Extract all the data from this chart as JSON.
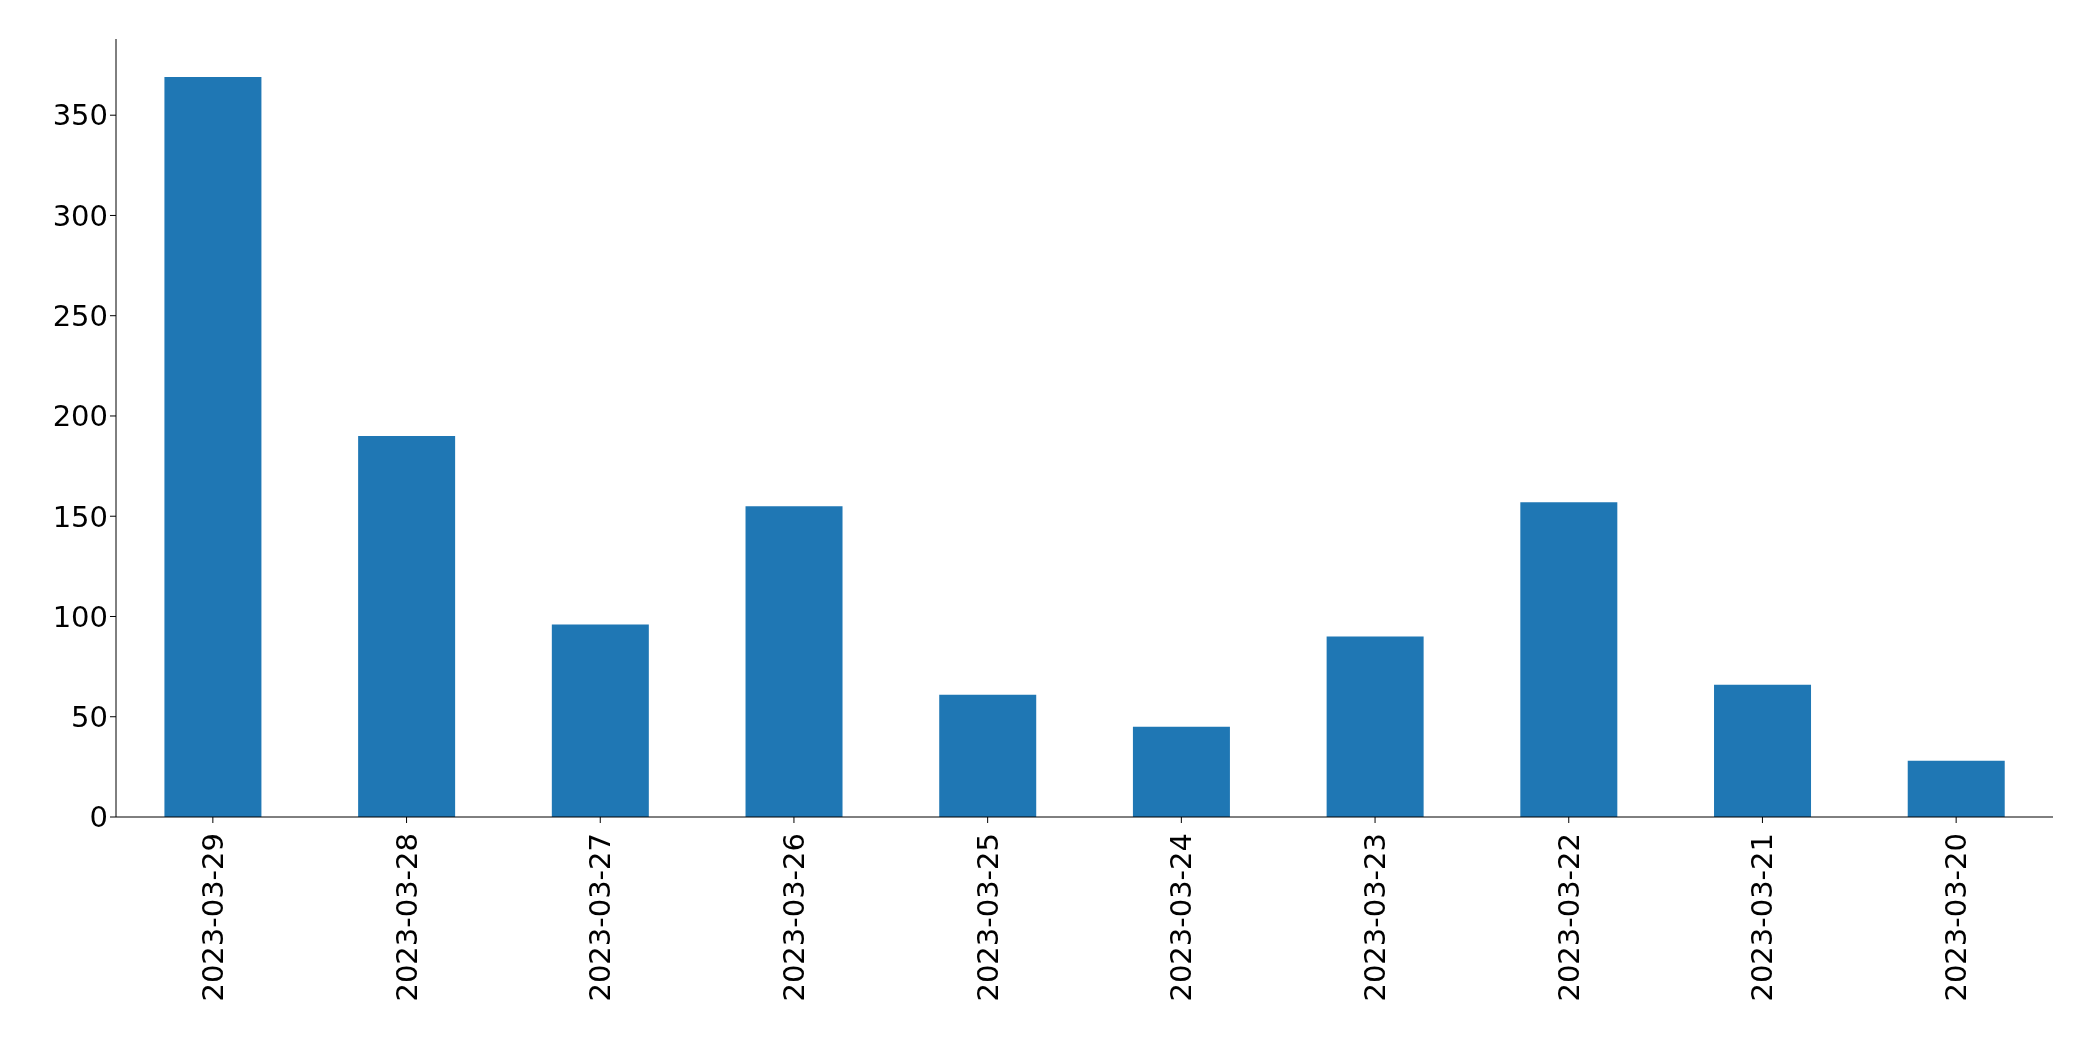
{
  "chart_data": {
    "type": "bar",
    "categories": [
      "2023-03-29",
      "2023-03-28",
      "2023-03-27",
      "2023-03-26",
      "2023-03-25",
      "2023-03-24",
      "2023-03-23",
      "2023-03-22",
      "2023-03-21",
      "2023-03-20"
    ],
    "values": [
      369,
      190,
      96,
      155,
      61,
      45,
      90,
      157,
      66,
      28
    ],
    "color": "#1f77b4",
    "ylim": [
      0,
      388
    ],
    "yticks": [
      0,
      50,
      100,
      150,
      200,
      250,
      300,
      350
    ],
    "grid": false,
    "legend": false
  }
}
